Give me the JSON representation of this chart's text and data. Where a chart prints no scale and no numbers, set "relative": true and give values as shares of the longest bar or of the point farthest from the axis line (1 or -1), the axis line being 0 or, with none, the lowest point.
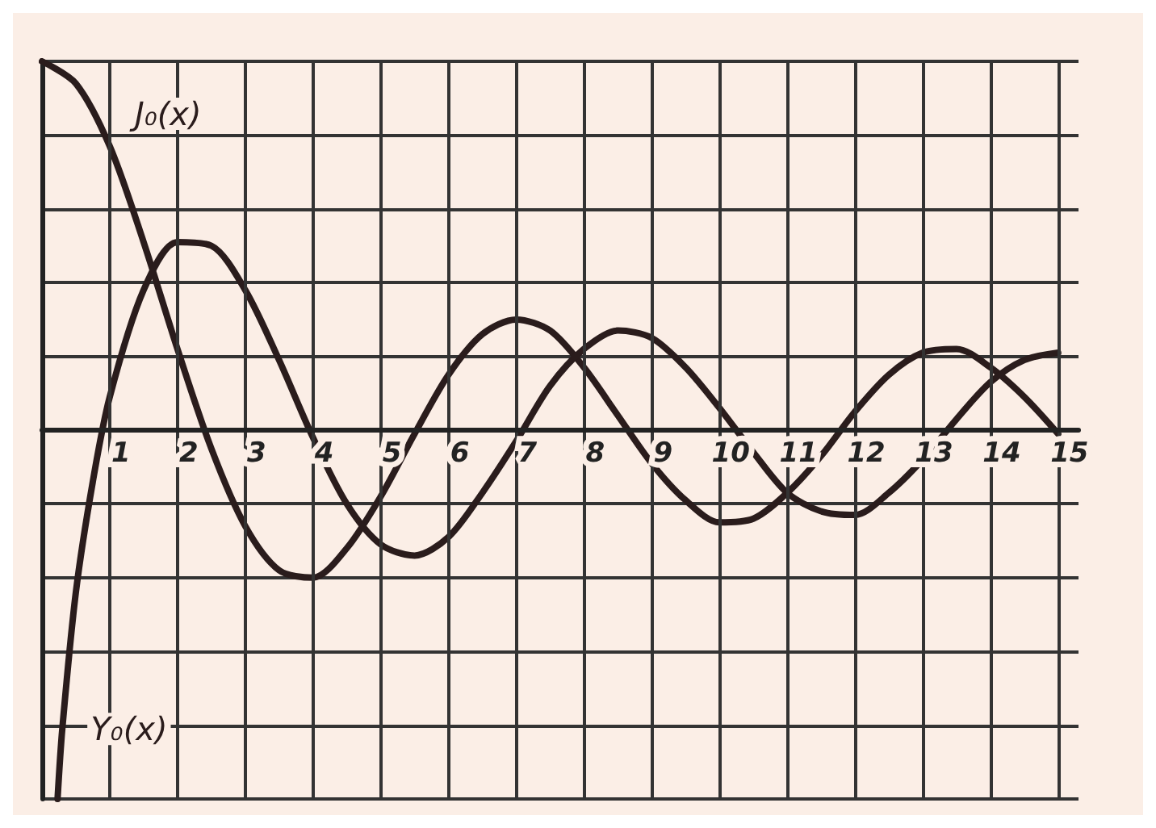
{
  "chart_data": {
    "type": "line",
    "relative": true,
    "xlim": [
      0,
      15.3
    ],
    "xticks": [
      1,
      2,
      3,
      4,
      5,
      6,
      7,
      8,
      9,
      10,
      11,
      12,
      13,
      14,
      15
    ],
    "grid": true,
    "tick_labels": "x",
    "marker": "none",
    "line_style": "solid",
    "legend": false,
    "series": [
      {
        "name": "J₀(x)",
        "color": "#2a1c1c",
        "x": [
          0,
          0.5,
          1,
          1.5,
          2,
          2.5,
          3,
          3.5,
          4,
          4.5,
          5,
          5.5,
          6,
          6.5,
          7,
          7.5,
          8,
          8.5,
          9,
          9.5,
          10,
          10.5,
          11,
          11.5,
          12,
          12.5,
          13,
          13.5,
          14,
          14.5,
          15
        ],
        "values": [
          1,
          0.94,
          0.77,
          0.51,
          0.22,
          -0.05,
          -0.26,
          -0.38,
          -0.4,
          -0.32,
          -0.18,
          -0.01,
          0.15,
          0.26,
          0.3,
          0.27,
          0.17,
          0.04,
          -0.09,
          -0.19,
          -0.25,
          -0.24,
          -0.17,
          -0.07,
          0.05,
          0.15,
          0.21,
          0.22,
          0.17,
          0.09,
          -0.01
        ]
      },
      {
        "name": "Y₀(x)",
        "color": "#2a1c1c",
        "x": [
          0.23,
          0.3,
          0.5,
          0.75,
          1,
          1.5,
          2,
          2.5,
          3,
          3.5,
          4,
          4.5,
          5,
          5.5,
          6,
          6.5,
          7,
          7.5,
          8,
          8.5,
          9,
          9.5,
          10,
          10.5,
          11,
          11.5,
          12,
          12.5,
          13,
          13.5,
          14,
          14.5,
          15
        ],
        "values": [
          -1,
          -0.81,
          -0.44,
          -0.14,
          0.09,
          0.38,
          0.51,
          0.5,
          0.38,
          0.19,
          -0.02,
          -0.2,
          -0.31,
          -0.34,
          -0.29,
          -0.17,
          -0.03,
          0.12,
          0.22,
          0.27,
          0.25,
          0.17,
          0.06,
          -0.06,
          -0.17,
          -0.22,
          -0.23,
          -0.17,
          -0.08,
          0.03,
          0.13,
          0.19,
          0.21
        ]
      }
    ]
  }
}
